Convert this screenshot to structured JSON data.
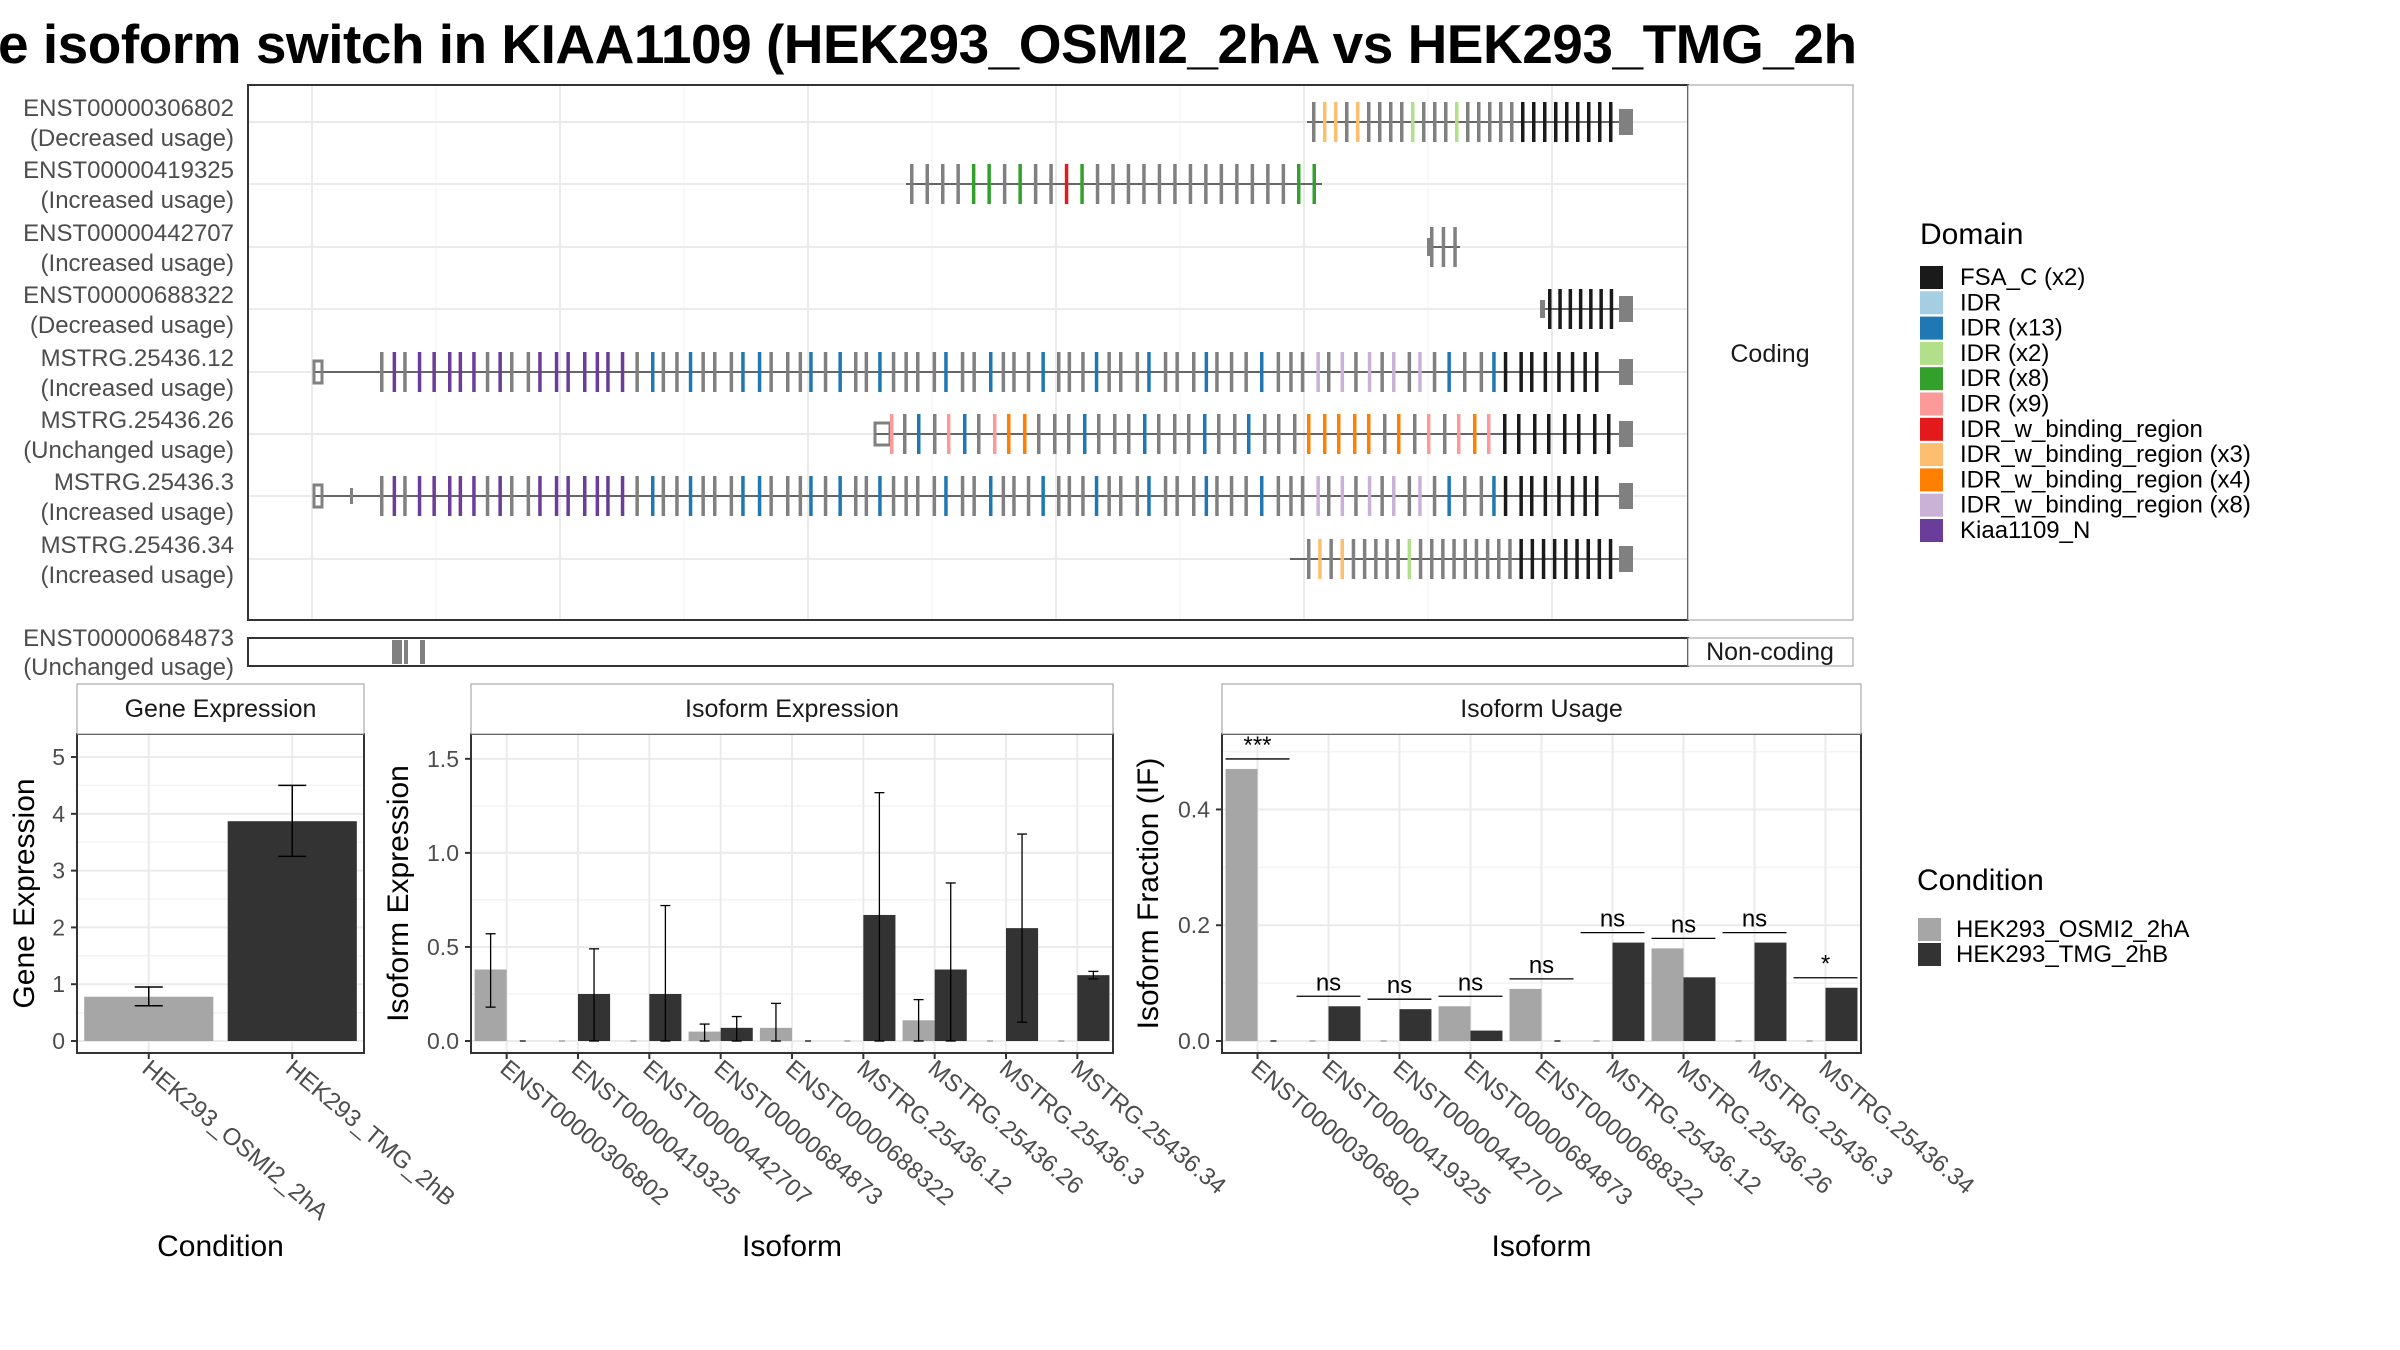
{
  "title": "e isoform switch in KIAA1109 (HEK293_OSMI2_2hA vs HEK293_TMG_2h",
  "structure": {
    "coding_strip_label": "Coding",
    "noncoding_strip_label": "Non-coding",
    "coding_isoforms": [
      {
        "id": "ENST00000306802",
        "usage": "(Decreased usage)"
      },
      {
        "id": "ENST00000419325",
        "usage": "(Increased usage)"
      },
      {
        "id": "ENST00000442707",
        "usage": "(Increased usage)"
      },
      {
        "id": "ENST00000688322",
        "usage": "(Decreased usage)"
      },
      {
        "id": "MSTRG.25436.12",
        "usage": "(Increased usage)"
      },
      {
        "id": "MSTRG.25436.26",
        "usage": "(Unchanged usage)"
      },
      {
        "id": "MSTRG.25436.3",
        "usage": "(Increased usage)"
      },
      {
        "id": "MSTRG.25436.34",
        "usage": "(Increased usage)"
      }
    ],
    "noncoding_isoforms": [
      {
        "id": "ENST00000684873",
        "usage": "(Unchanged usage)"
      }
    ]
  },
  "legend_domain": {
    "title": "Domain",
    "items": [
      {
        "label": "FSA_C (x2)",
        "color": "#1a1a1a"
      },
      {
        "label": "IDR",
        "color": "#a6cee3"
      },
      {
        "label": "IDR (x13)",
        "color": "#1f78b4"
      },
      {
        "label": "IDR (x2)",
        "color": "#b2df8a"
      },
      {
        "label": "IDR (x8)",
        "color": "#33a02c"
      },
      {
        "label": "IDR (x9)",
        "color": "#fb9a99"
      },
      {
        "label": "IDR_w_binding_region",
        "color": "#e31a1c"
      },
      {
        "label": "IDR_w_binding_region (x3)",
        "color": "#fdbf6f"
      },
      {
        "label": "IDR_w_binding_region (x4)",
        "color": "#ff7f00"
      },
      {
        "label": "IDR_w_binding_region (x8)",
        "color": "#cab2d6"
      },
      {
        "label": "Kiaa1109_N",
        "color": "#6a3d9a"
      }
    ]
  },
  "legend_condition": {
    "title": "Condition",
    "items": [
      {
        "label": "HEK293_OSMI2_2hA",
        "color": "#a6a6a6"
      },
      {
        "label": "HEK293_TMG_2hB",
        "color": "#333333"
      }
    ]
  },
  "chart_data": [
    {
      "type": "bar",
      "title": "Gene Expression",
      "xlabel": "Condition",
      "ylabel": "Gene Expression",
      "ylim": [
        0,
        5.3
      ],
      "yticks": [
        "0",
        "1",
        "2",
        "3",
        "4",
        "5"
      ],
      "categories": [
        "HEK293_OSMI2_2hA",
        "HEK293_TMG_2hB"
      ],
      "values": [
        0.78,
        3.87
      ],
      "err_low": [
        0.62,
        3.25
      ],
      "err_high": [
        0.95,
        4.5
      ],
      "colors": [
        "#a6a6a6",
        "#333333"
      ]
    },
    {
      "type": "bar",
      "title": "Isoform Expression",
      "xlabel": "Isoform",
      "ylabel": "Isoform Expression",
      "ylim": [
        0,
        1.6
      ],
      "yticks": [
        "0.0",
        "0.5",
        "1.0",
        "1.5"
      ],
      "categories": [
        "ENST00000306802",
        "ENST00000419325",
        "ENST00000442707",
        "ENST00000684873",
        "ENST00000688322",
        "MSTRG.25436.12",
        "MSTRG.25436.26",
        "MSTRG.25436.3",
        "MSTRG.25436.34"
      ],
      "series": [
        {
          "name": "HEK293_OSMI2_2hA",
          "values": [
            0.38,
            0.0,
            0.0,
            0.05,
            0.07,
            0.0,
            0.11,
            0.0,
            0.0
          ],
          "err_low": [
            0.18,
            null,
            null,
            0.0,
            0.0,
            null,
            0.0,
            null,
            null
          ],
          "err_high": [
            0.57,
            null,
            null,
            0.09,
            0.2,
            null,
            0.22,
            null,
            null
          ]
        },
        {
          "name": "HEK293_TMG_2hB",
          "values": [
            0.0,
            0.25,
            0.25,
            0.07,
            0.0,
            0.67,
            0.38,
            0.6,
            0.35
          ],
          "err_low": [
            null,
            0.0,
            0.0,
            0.0,
            null,
            0.0,
            0.0,
            0.1,
            0.33
          ],
          "err_high": [
            null,
            0.49,
            0.72,
            0.13,
            null,
            1.32,
            0.84,
            1.1,
            0.37
          ]
        }
      ]
    },
    {
      "type": "bar",
      "title": "Isoform Usage",
      "xlabel": "Isoform",
      "ylabel": "Isoform Fraction (IF)",
      "ylim": [
        0,
        0.52
      ],
      "yticks": [
        "0.0",
        "0.2",
        "0.4"
      ],
      "categories": [
        "ENST00000306802",
        "ENST00000419325",
        "ENST00000442707",
        "ENST00000684873",
        "ENST00000688322",
        "MSTRG.25436.12",
        "MSTRG.25436.26",
        "MSTRG.25436.3",
        "MSTRG.25436.34"
      ],
      "series": [
        {
          "name": "HEK293_OSMI2_2hA",
          "values": [
            0.47,
            0.0,
            0.0,
            0.06,
            0.09,
            0.0,
            0.16,
            0.0,
            0.0
          ]
        },
        {
          "name": "HEK293_TMG_2hB",
          "values": [
            0.0,
            0.06,
            0.055,
            0.018,
            0.0,
            0.17,
            0.11,
            0.17,
            0.092
          ]
        }
      ],
      "significance": [
        "***",
        "ns",
        "ns",
        "ns",
        "ns",
        "ns",
        "ns",
        "ns",
        "*"
      ]
    }
  ]
}
